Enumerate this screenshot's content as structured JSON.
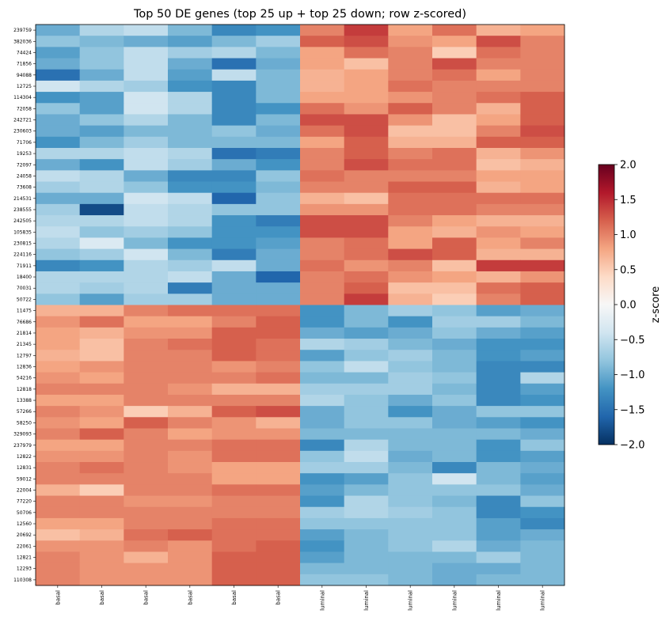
{
  "chart_data": {
    "type": "heatmap",
    "title": "Top 50 DE genes (top 25 up + top 25 down; row z-scored)",
    "colorbar_label": "z-score",
    "colorbar_ticks": [
      "2.0",
      "1.5",
      "1.0",
      "0.5",
      "0.0",
      "−0.5",
      "−1.0",
      "−1.5",
      "−2.0"
    ],
    "colorbar_range": [
      -2.0,
      2.0
    ],
    "colormap": "RdBu_r",
    "columns": [
      "basal",
      "basal",
      "basal",
      "basal",
      "basal",
      "basal",
      "luminal",
      "luminal",
      "luminal",
      "luminal",
      "luminal",
      "luminal"
    ],
    "rows": [
      "239759",
      "382036",
      "74424",
      "71856",
      "94088",
      "12725",
      "114304",
      "72058",
      "242721",
      "230603",
      "71706",
      "19253",
      "72097",
      "24058",
      "73608",
      "214531",
      "238555",
      "242505",
      "105835",
      "230815",
      "224116",
      "71911",
      "18400",
      "70031",
      "50722",
      "11475",
      "76686",
      "21814",
      "21345",
      "12797",
      "12836",
      "54216",
      "12818",
      "13388",
      "57266",
      "58250",
      "329093",
      "237979",
      "12822",
      "12831",
      "59012",
      "22004",
      "77220",
      "50706",
      "12560",
      "20692",
      "22061",
      "12821",
      "12293",
      "110308"
    ],
    "values": [
      [
        -1.0,
        -0.6,
        -0.5,
        -0.9,
        -1.3,
        -1.2,
        1.0,
        1.4,
        0.8,
        1.1,
        0.7,
        0.8
      ],
      [
        -0.8,
        -0.9,
        -1.0,
        -1.1,
        -0.9,
        -0.7,
        1.2,
        1.3,
        0.9,
        0.8,
        1.3,
        1.0
      ],
      [
        -1.1,
        -0.8,
        -0.5,
        -0.7,
        -0.6,
        -0.9,
        0.8,
        1.1,
        1.0,
        0.5,
        1.1,
        1.0
      ],
      [
        -1.0,
        -0.8,
        -0.5,
        -1.0,
        -1.5,
        -1.0,
        0.8,
        0.6,
        1.0,
        1.3,
        1.0,
        1.0
      ],
      [
        -1.5,
        -1.0,
        -0.5,
        -1.1,
        -0.5,
        -0.9,
        0.7,
        0.8,
        1.0,
        1.1,
        0.8,
        1.0
      ],
      [
        -0.4,
        -0.6,
        -0.7,
        -1.2,
        -1.3,
        -0.9,
        0.7,
        0.8,
        1.1,
        1.0,
        1.0,
        1.0
      ],
      [
        -1.2,
        -1.1,
        -0.4,
        -0.6,
        -1.3,
        -0.9,
        0.8,
        0.8,
        0.9,
        1.0,
        1.1,
        1.2
      ],
      [
        -0.8,
        -1.1,
        -0.4,
        -0.6,
        -1.3,
        -1.2,
        1.1,
        0.9,
        1.2,
        1.0,
        0.7,
        1.2
      ],
      [
        -1.0,
        -0.8,
        -0.6,
        -0.9,
        -1.3,
        -0.9,
        1.3,
        1.3,
        0.9,
        0.6,
        0.8,
        1.2
      ],
      [
        -1.0,
        -1.1,
        -0.9,
        -0.9,
        -0.8,
        -1.0,
        1.1,
        1.3,
        0.6,
        0.6,
        1.0,
        1.3
      ],
      [
        -1.2,
        -0.9,
        -0.7,
        -0.9,
        -0.9,
        -0.9,
        0.8,
        1.2,
        0.7,
        0.7,
        1.2,
        1.2
      ],
      [
        -0.6,
        -0.6,
        -0.5,
        -0.6,
        -1.5,
        -1.4,
        1.0,
        1.2,
        1.0,
        1.1,
        0.7,
        0.9
      ],
      [
        -1.0,
        -1.2,
        -0.5,
        -0.7,
        -1.0,
        -1.2,
        1.0,
        1.3,
        1.1,
        1.1,
        0.6,
        0.7
      ],
      [
        -0.5,
        -0.6,
        -1.0,
        -1.3,
        -1.3,
        -0.8,
        1.1,
        1.0,
        1.0,
        1.0,
        0.8,
        0.8
      ],
      [
        -0.7,
        -0.6,
        -0.8,
        -1.2,
        -1.2,
        -0.9,
        1.0,
        1.0,
        1.2,
        1.2,
        0.7,
        0.8
      ],
      [
        -1.0,
        -1.0,
        -0.4,
        -0.5,
        -1.6,
        -0.8,
        0.7,
        0.6,
        1.1,
        1.1,
        1.1,
        1.1
      ],
      [
        -0.7,
        -1.8,
        -0.5,
        -0.6,
        -0.8,
        -0.8,
        0.9,
        0.9,
        1.1,
        1.1,
        1.0,
        1.0
      ],
      [
        -0.6,
        -0.6,
        -0.5,
        -0.6,
        -1.2,
        -1.4,
        1.3,
        1.3,
        1.0,
        0.8,
        0.7,
        0.7
      ],
      [
        -0.5,
        -0.8,
        -0.7,
        -0.8,
        -1.2,
        -1.2,
        1.3,
        1.3,
        0.8,
        0.7,
        0.9,
        0.8
      ],
      [
        -0.6,
        -0.3,
        -0.9,
        -1.2,
        -1.2,
        -1.1,
        1.0,
        1.1,
        0.8,
        1.2,
        0.8,
        1.0
      ],
      [
        -0.8,
        -0.7,
        -0.4,
        -0.9,
        -1.4,
        -1.0,
        1.0,
        1.1,
        1.3,
        1.2,
        0.7,
        0.7
      ],
      [
        -1.3,
        -1.2,
        -0.6,
        -0.7,
        -0.5,
        -1.0,
        1.1,
        0.9,
        1.0,
        0.6,
        1.4,
        1.4
      ],
      [
        -0.6,
        -0.6,
        -0.6,
        -0.5,
        -1.0,
        -1.6,
        1.0,
        1.1,
        0.9,
        0.8,
        0.7,
        0.9
      ],
      [
        -0.6,
        -0.7,
        -0.6,
        -1.4,
        -1.0,
        -1.0,
        1.0,
        1.2,
        0.6,
        0.6,
        1.1,
        1.2
      ],
      [
        -0.8,
        -1.1,
        -0.7,
        -0.7,
        -1.0,
        -1.0,
        1.0,
        1.4,
        0.7,
        0.5,
        1.0,
        1.2
      ],
      [
        0.7,
        0.7,
        1.0,
        1.1,
        1.1,
        1.1,
        -1.2,
        -0.9,
        -0.7,
        -0.8,
        -1.1,
        -1.0
      ],
      [
        0.9,
        1.1,
        0.8,
        0.8,
        1.0,
        1.2,
        -1.2,
        -0.9,
        -1.2,
        -0.7,
        -0.7,
        -0.9
      ],
      [
        0.8,
        0.7,
        0.9,
        0.9,
        1.2,
        1.2,
        -1.0,
        -1.1,
        -1.0,
        -0.8,
        -1.0,
        -1.1
      ],
      [
        0.8,
        0.6,
        1.0,
        1.1,
        1.2,
        1.1,
        -0.6,
        -0.7,
        -0.9,
        -1.0,
        -1.2,
        -1.2
      ],
      [
        0.7,
        0.6,
        1.0,
        1.0,
        1.2,
        1.1,
        -1.1,
        -0.8,
        -0.7,
        -0.9,
        -1.2,
        -1.1
      ],
      [
        0.8,
        0.9,
        1.0,
        1.0,
        0.9,
        1.0,
        -0.8,
        -0.5,
        -0.8,
        -0.9,
        -1.3,
        -1.3
      ],
      [
        0.9,
        0.8,
        1.0,
        1.0,
        1.0,
        1.1,
        -0.9,
        -0.9,
        -0.7,
        -0.8,
        -1.3,
        -0.6
      ],
      [
        1.0,
        1.0,
        1.0,
        0.9,
        0.7,
        0.7,
        -0.7,
        -0.7,
        -0.7,
        -0.9,
        -1.3,
        -1.1
      ],
      [
        0.8,
        0.8,
        1.0,
        1.0,
        1.0,
        1.0,
        -0.6,
        -0.8,
        -1.0,
        -0.8,
        -1.3,
        -1.2
      ],
      [
        1.0,
        0.9,
        0.5,
        0.7,
        1.2,
        1.3,
        -1.0,
        -0.8,
        -1.2,
        -1.0,
        -0.8,
        -0.8
      ],
      [
        0.9,
        0.8,
        1.2,
        1.0,
        0.9,
        0.7,
        -1.0,
        -0.8,
        -0.8,
        -1.0,
        -1.1,
        -1.2
      ],
      [
        1.0,
        1.2,
        1.0,
        0.8,
        0.9,
        0.9,
        -0.9,
        -0.9,
        -0.9,
        -0.9,
        -0.9,
        -1.0
      ],
      [
        0.8,
        0.8,
        1.0,
        1.0,
        1.1,
        1.1,
        -1.3,
        -0.6,
        -0.9,
        -0.9,
        -1.2,
        -0.8
      ],
      [
        0.9,
        0.9,
        1.0,
        0.9,
        1.1,
        1.1,
        -0.8,
        -0.5,
        -1.0,
        -0.9,
        -1.2,
        -1.1
      ],
      [
        1.0,
        1.1,
        1.0,
        0.9,
        0.8,
        0.8,
        -0.7,
        -0.7,
        -0.9,
        -1.3,
        -0.9,
        -1.0
      ],
      [
        1.0,
        1.0,
        1.0,
        1.0,
        0.8,
        0.8,
        -1.2,
        -1.1,
        -0.8,
        -0.4,
        -0.9,
        -1.1
      ],
      [
        0.7,
        0.5,
        1.0,
        1.0,
        1.1,
        1.1,
        -1.1,
        -0.9,
        -0.8,
        -0.8,
        -0.8,
        -1.0
      ],
      [
        1.0,
        1.0,
        0.9,
        0.9,
        1.0,
        1.0,
        -1.2,
        -0.6,
        -0.8,
        -0.9,
        -1.3,
        -0.8
      ],
      [
        1.0,
        1.0,
        1.0,
        1.0,
        1.0,
        1.0,
        -0.7,
        -0.6,
        -0.7,
        -0.8,
        -1.3,
        -1.2
      ],
      [
        0.8,
        0.8,
        1.0,
        1.0,
        1.1,
        1.1,
        -0.8,
        -0.8,
        -0.8,
        -0.8,
        -1.1,
        -1.3
      ],
      [
        0.6,
        0.7,
        1.1,
        1.2,
        1.1,
        1.1,
        -1.1,
        -0.9,
        -0.8,
        -0.8,
        -1.1,
        -1.0
      ],
      [
        0.9,
        0.9,
        1.0,
        0.9,
        1.1,
        1.2,
        -1.2,
        -0.9,
        -0.8,
        -0.6,
        -1.0,
        -0.9
      ],
      [
        1.0,
        0.9,
        0.7,
        0.9,
        1.2,
        1.2,
        -1.1,
        -0.9,
        -0.9,
        -0.9,
        -0.7,
        -0.9
      ],
      [
        1.0,
        0.9,
        0.9,
        0.9,
        1.2,
        1.2,
        -0.9,
        -0.9,
        -0.9,
        -1.0,
        -1.0,
        -0.9
      ],
      [
        1.0,
        0.9,
        0.9,
        0.9,
        1.2,
        1.2,
        -0.8,
        -0.8,
        -0.9,
        -1.0,
        -0.9,
        -0.9
      ]
    ]
  }
}
